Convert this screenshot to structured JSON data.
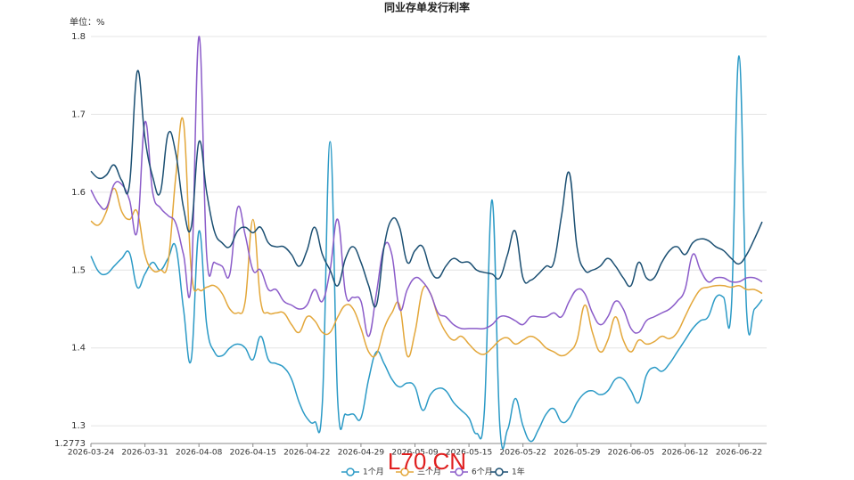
{
  "chart_data": {
    "type": "line",
    "title": "同业存单发行利率",
    "unit_label": "单位：%",
    "watermark": "L70.CN",
    "categories": [
      "2026-03-24",
      null,
      null,
      null,
      null,
      null,
      null,
      "2026-03-31",
      null,
      null,
      null,
      null,
      null,
      null,
      "2026-04-08",
      null,
      null,
      null,
      null,
      null,
      null,
      "2026-04-15",
      null,
      null,
      null,
      null,
      null,
      null,
      "2026-04-22",
      null,
      null,
      null,
      null,
      null,
      null,
      "2026-04-29",
      null,
      null,
      null,
      null,
      null,
      null,
      "2026-05-09",
      null,
      null,
      null,
      null,
      null,
      null,
      "2026-05-15",
      null,
      null,
      null,
      null,
      null,
      null,
      "2026-05-22",
      null,
      null,
      null,
      null,
      null,
      null,
      "2026-05-29",
      null,
      null,
      null,
      null,
      null,
      null,
      "2026-06-05",
      null,
      null,
      null,
      null,
      null,
      null,
      "2026-06-12",
      null,
      null,
      null,
      null,
      null,
      null,
      "2026-06-22",
      null,
      null,
      null
    ],
    "ylim": [
      1.2773,
      1.8
    ],
    "yticks": [
      1.2773,
      1.3,
      1.4,
      1.5,
      1.6,
      1.7,
      1.8
    ],
    "grid": true,
    "series": [
      {
        "name": "1个月",
        "color": "#2b9ac6",
        "values": [
          1.518,
          1.498,
          1.495,
          1.505,
          1.515,
          1.522,
          1.478,
          1.495,
          1.51,
          1.5,
          1.515,
          1.53,
          1.45,
          1.385,
          1.55,
          1.43,
          1.395,
          1.39,
          1.4,
          1.405,
          1.4,
          1.385,
          1.415,
          1.385,
          1.38,
          1.375,
          1.36,
          1.33,
          1.31,
          1.305,
          1.33,
          1.665,
          1.33,
          1.315,
          1.315,
          1.31,
          1.36,
          1.395,
          1.38,
          1.36,
          1.35,
          1.355,
          1.35,
          1.32,
          1.34,
          1.348,
          1.345,
          1.33,
          1.32,
          1.31,
          1.29,
          1.32,
          1.59,
          1.3,
          1.295,
          1.335,
          1.3,
          1.28,
          1.295,
          1.315,
          1.322,
          1.305,
          1.31,
          1.33,
          1.342,
          1.345,
          1.34,
          1.345,
          1.36,
          1.36,
          1.345,
          1.33,
          1.365,
          1.375,
          1.37,
          1.38,
          1.395,
          1.41,
          1.425,
          1.435,
          1.44,
          1.465,
          1.465,
          1.45,
          1.775,
          1.445,
          1.45,
          1.462
        ]
      },
      {
        "name": "三个月",
        "color": "#e3a73a",
        "values": [
          1.563,
          1.558,
          1.575,
          1.605,
          1.575,
          1.565,
          1.575,
          1.52,
          1.5,
          1.5,
          1.51,
          1.62,
          1.69,
          1.5,
          1.475,
          1.478,
          1.48,
          1.47,
          1.45,
          1.445,
          1.46,
          1.565,
          1.46,
          1.445,
          1.445,
          1.445,
          1.43,
          1.42,
          1.44,
          1.435,
          1.42,
          1.42,
          1.44,
          1.455,
          1.45,
          1.425,
          1.395,
          1.392,
          1.425,
          1.445,
          1.455,
          1.39,
          1.42,
          1.475,
          1.47,
          1.44,
          1.42,
          1.41,
          1.415,
          1.405,
          1.395,
          1.392,
          1.4,
          1.41,
          1.413,
          1.405,
          1.41,
          1.415,
          1.41,
          1.4,
          1.395,
          1.39,
          1.395,
          1.41,
          1.455,
          1.42,
          1.395,
          1.41,
          1.44,
          1.41,
          1.395,
          1.41,
          1.405,
          1.408,
          1.415,
          1.412,
          1.42,
          1.44,
          1.46,
          1.475,
          1.478,
          1.48,
          1.48,
          1.478,
          1.48,
          1.475,
          1.475,
          1.47
        ]
      },
      {
        "name": "6个月",
        "color": "#8b5cc9",
        "values": [
          1.603,
          1.585,
          1.58,
          1.61,
          1.61,
          1.59,
          1.55,
          1.69,
          1.6,
          1.58,
          1.57,
          1.56,
          1.52,
          1.485,
          1.8,
          1.52,
          1.51,
          1.505,
          1.495,
          1.58,
          1.545,
          1.5,
          1.5,
          1.475,
          1.475,
          1.46,
          1.455,
          1.45,
          1.455,
          1.475,
          1.46,
          1.5,
          1.565,
          1.47,
          1.465,
          1.46,
          1.415,
          1.47,
          1.53,
          1.52,
          1.45,
          1.475,
          1.49,
          1.485,
          1.47,
          1.445,
          1.44,
          1.43,
          1.425,
          1.425,
          1.425,
          1.425,
          1.43,
          1.44,
          1.44,
          1.435,
          1.43,
          1.44,
          1.44,
          1.44,
          1.445,
          1.44,
          1.46,
          1.475,
          1.47,
          1.445,
          1.43,
          1.44,
          1.46,
          1.45,
          1.425,
          1.42,
          1.435,
          1.44,
          1.445,
          1.45,
          1.46,
          1.475,
          1.52,
          1.5,
          1.485,
          1.49,
          1.49,
          1.485,
          1.485,
          1.49,
          1.49,
          1.485
        ]
      },
      {
        "name": "1年",
        "color": "#1b4f72",
        "values": [
          1.627,
          1.618,
          1.622,
          1.635,
          1.615,
          1.61,
          1.755,
          1.67,
          1.62,
          1.6,
          1.675,
          1.65,
          1.58,
          1.555,
          1.665,
          1.6,
          1.55,
          1.535,
          1.53,
          1.55,
          1.555,
          1.548,
          1.555,
          1.535,
          1.53,
          1.53,
          1.52,
          1.505,
          1.525,
          1.555,
          1.52,
          1.5,
          1.48,
          1.515,
          1.53,
          1.51,
          1.48,
          1.455,
          1.53,
          1.565,
          1.555,
          1.51,
          1.525,
          1.53,
          1.5,
          1.49,
          1.505,
          1.515,
          1.51,
          1.51,
          1.5,
          1.497,
          1.495,
          1.49,
          1.52,
          1.55,
          1.49,
          1.487,
          1.495,
          1.505,
          1.51,
          1.57,
          1.625,
          1.53,
          1.5,
          1.5,
          1.505,
          1.515,
          1.505,
          1.49,
          1.48,
          1.51,
          1.49,
          1.49,
          1.51,
          1.525,
          1.53,
          1.52,
          1.535,
          1.54,
          1.538,
          1.53,
          1.525,
          1.515,
          1.508,
          1.52,
          1.54,
          1.562
        ]
      }
    ]
  }
}
